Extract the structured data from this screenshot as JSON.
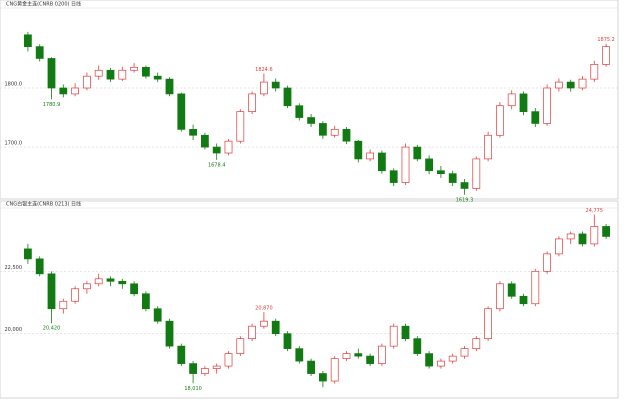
{
  "chart_data": [
    {
      "type": "candlestick",
      "title": "CNG黄金主连(CNRB 0200)  日线",
      "up_color": "#e03c3c",
      "down_color": "#127a12",
      "grid": true,
      "ylim": [
        1624,
        1932
      ],
      "yticks": [
        {
          "value": 1700,
          "label": "1700.0"
        },
        {
          "value": 1800,
          "label": "1800.0"
        }
      ],
      "annotations": [
        {
          "label": "1780.9",
          "value": 1780.9
        },
        {
          "label": "1678.4",
          "value": 1678.4
        },
        {
          "label": "1824.6",
          "value": 1824.6
        },
        {
          "label": "1619.3",
          "value": 1619.3
        },
        {
          "label": "1875.2",
          "value": 1875.2
        }
      ],
      "candles": [
        [
          1890,
          1895,
          1862,
          1870
        ],
        [
          1870,
          1874,
          1845,
          1850
        ],
        [
          1850,
          1852,
          1780.9,
          1800
        ],
        [
          1800,
          1806,
          1784,
          1790
        ],
        [
          1790,
          1808,
          1786,
          1800
        ],
        [
          1800,
          1826,
          1796,
          1820
        ],
        [
          1820,
          1838,
          1814,
          1830
        ],
        [
          1830,
          1834,
          1810,
          1815
        ],
        [
          1815,
          1836,
          1812,
          1830
        ],
        [
          1830,
          1842,
          1826,
          1835
        ],
        [
          1835,
          1838,
          1816,
          1820
        ],
        [
          1820,
          1826,
          1810,
          1815
        ],
        [
          1815,
          1818,
          1786,
          1790
        ],
        [
          1790,
          1792,
          1726,
          1730
        ],
        [
          1730,
          1738,
          1712,
          1720
        ],
        [
          1720,
          1724,
          1696,
          1700
        ],
        [
          1700,
          1706,
          1678.4,
          1690
        ],
        [
          1690,
          1714,
          1686,
          1710
        ],
        [
          1710,
          1764,
          1706,
          1760
        ],
        [
          1760,
          1794,
          1756,
          1790
        ],
        [
          1790,
          1824.6,
          1786,
          1810
        ],
        [
          1810,
          1816,
          1794,
          1800
        ],
        [
          1800,
          1804,
          1766,
          1770
        ],
        [
          1770,
          1774,
          1745,
          1750
        ],
        [
          1750,
          1756,
          1734,
          1740
        ],
        [
          1740,
          1744,
          1714,
          1720
        ],
        [
          1720,
          1736,
          1716,
          1730
        ],
        [
          1730,
          1734,
          1705,
          1710
        ],
        [
          1710,
          1712,
          1674,
          1680
        ],
        [
          1680,
          1696,
          1676,
          1690
        ],
        [
          1690,
          1694,
          1655,
          1660
        ],
        [
          1660,
          1664,
          1634,
          1640
        ],
        [
          1640,
          1706,
          1636,
          1700
        ],
        [
          1700,
          1704,
          1676,
          1680
        ],
        [
          1680,
          1686,
          1654,
          1660
        ],
        [
          1660,
          1668,
          1648,
          1655
        ],
        [
          1655,
          1660,
          1634,
          1640
        ],
        [
          1640,
          1646,
          1619.3,
          1630
        ],
        [
          1630,
          1684,
          1626,
          1680
        ],
        [
          1680,
          1726,
          1676,
          1720
        ],
        [
          1720,
          1776,
          1716,
          1770
        ],
        [
          1770,
          1796,
          1764,
          1790
        ],
        [
          1790,
          1794,
          1754,
          1760
        ],
        [
          1760,
          1766,
          1734,
          1740
        ],
        [
          1740,
          1806,
          1736,
          1800
        ],
        [
          1800,
          1816,
          1794,
          1810
        ],
        [
          1810,
          1814,
          1794,
          1800
        ],
        [
          1800,
          1820,
          1796,
          1815
        ],
        [
          1815,
          1846,
          1810,
          1840
        ],
        [
          1840,
          1875.2,
          1836,
          1870
        ]
      ]
    },
    {
      "type": "candlestick",
      "title": "CNG白银主连(CNRB 0213)  日线",
      "up_color": "#e03c3c",
      "down_color": "#127a12",
      "grid": true,
      "ylim": [
        17580,
        24960
      ],
      "yticks": [
        {
          "value": 20000,
          "label": "20,000"
        },
        {
          "value": 22500,
          "label": "22,500"
        }
      ],
      "annotations": [
        {
          "label": "20,420",
          "value": 20420
        },
        {
          "label": "18,010",
          "value": 18010
        },
        {
          "label": "20,870",
          "value": 20870
        },
        {
          "label": "24,775",
          "value": 24775
        }
      ],
      "candles": [
        [
          23400,
          23600,
          22800,
          23000
        ],
        [
          23000,
          23100,
          22300,
          22400
        ],
        [
          22400,
          22500,
          20420,
          21000
        ],
        [
          21000,
          21400,
          20800,
          21300
        ],
        [
          21300,
          21900,
          21200,
          21800
        ],
        [
          21800,
          22100,
          21600,
          22000
        ],
        [
          22000,
          22400,
          21900,
          22200
        ],
        [
          22200,
          22300,
          21900,
          22100
        ],
        [
          22100,
          22200,
          21800,
          22000
        ],
        [
          22000,
          22100,
          21500,
          21600
        ],
        [
          21600,
          21700,
          20900,
          21000
        ],
        [
          21000,
          21100,
          20400,
          20500
        ],
        [
          20500,
          20600,
          19400,
          19500
        ],
        [
          19500,
          19600,
          18700,
          18800
        ],
        [
          18800,
          18900,
          18010,
          18400
        ],
        [
          18400,
          18700,
          18300,
          18600
        ],
        [
          18600,
          18800,
          18400,
          18700
        ],
        [
          18700,
          19300,
          18600,
          19200
        ],
        [
          19200,
          19900,
          19100,
          19800
        ],
        [
          19800,
          20400,
          19700,
          20300
        ],
        [
          20300,
          20870,
          20200,
          20500
        ],
        [
          20500,
          20600,
          19900,
          20000
        ],
        [
          20000,
          20100,
          19300,
          19400
        ],
        [
          19400,
          19500,
          18800,
          18900
        ],
        [
          18900,
          19000,
          18300,
          18400
        ],
        [
          18400,
          18500,
          17850,
          18100
        ],
        [
          18100,
          19100,
          18000,
          19000
        ],
        [
          19000,
          19300,
          18900,
          19200
        ],
        [
          19200,
          19400,
          19000,
          19100
        ],
        [
          19100,
          19200,
          18700,
          18800
        ],
        [
          18800,
          19600,
          18700,
          19500
        ],
        [
          19500,
          20400,
          19400,
          20300
        ],
        [
          20300,
          20400,
          19700,
          19800
        ],
        [
          19800,
          19900,
          19100,
          19200
        ],
        [
          19200,
          19300,
          18600,
          18700
        ],
        [
          18700,
          19000,
          18600,
          18900
        ],
        [
          18900,
          19200,
          18800,
          19100
        ],
        [
          19100,
          19500,
          19000,
          19400
        ],
        [
          19400,
          19900,
          19300,
          19800
        ],
        [
          19800,
          21100,
          19700,
          21000
        ],
        [
          21000,
          22100,
          20900,
          22000
        ],
        [
          22000,
          22100,
          21400,
          21500
        ],
        [
          21500,
          21600,
          21100,
          21200
        ],
        [
          21200,
          22600,
          21100,
          22500
        ],
        [
          22500,
          23300,
          22400,
          23200
        ],
        [
          23200,
          23900,
          23100,
          23800
        ],
        [
          23800,
          24100,
          23600,
          24000
        ],
        [
          24000,
          24100,
          23500,
          23600
        ],
        [
          23600,
          24775,
          23500,
          24300
        ],
        [
          24300,
          24400,
          23800,
          23900
        ]
      ]
    }
  ]
}
